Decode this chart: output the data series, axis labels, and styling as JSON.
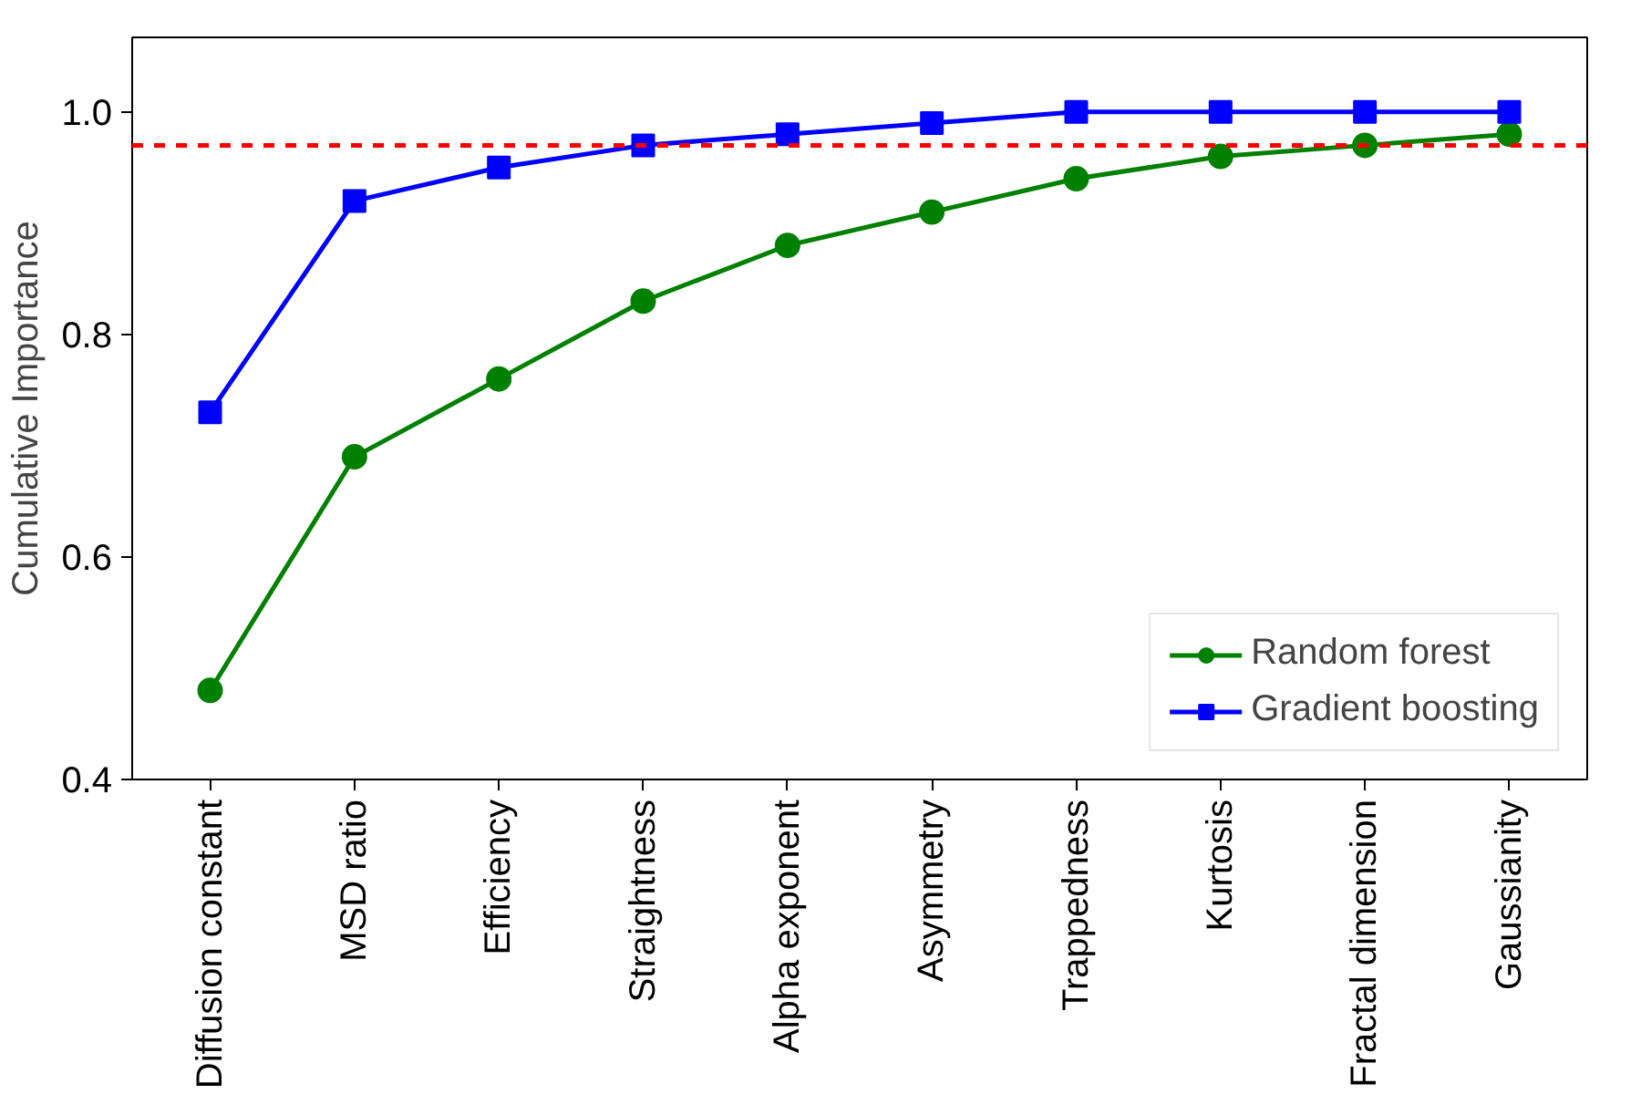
{
  "chart_data": {
    "type": "line",
    "ylabel": "Cumulative Importance",
    "categories": [
      "Diffusion constant",
      "MSD ratio",
      "Efficiency",
      "Straightness",
      "Alpha exponent",
      "Asymmetry",
      "Trappedness",
      "Kurtosis",
      "Fractal dimension",
      "Gaussianity"
    ],
    "series": [
      {
        "name": "Random forest",
        "color": "#008000",
        "marker": "circle",
        "values": [
          0.48,
          0.69,
          0.76,
          0.83,
          0.88,
          0.91,
          0.94,
          0.96,
          0.97,
          0.98
        ]
      },
      {
        "name": "Gradient boosting",
        "color": "#0000ff",
        "marker": "square",
        "values": [
          0.73,
          0.92,
          0.95,
          0.97,
          0.98,
          0.99,
          1.0,
          1.0,
          1.0,
          1.0
        ]
      }
    ],
    "ylim": [
      0.4,
      1.067
    ],
    "yticks": [
      {
        "value": 0.4,
        "label": "0.4"
      },
      {
        "value": 0.6,
        "label": "0.6"
      },
      {
        "value": 0.8,
        "label": "0.8"
      },
      {
        "value": 1.0,
        "label": "1.0"
      }
    ],
    "ref_lines": [
      {
        "axis": "y",
        "value": 0.97,
        "color": "#ff0000",
        "line_style": "dashed"
      }
    ],
    "legend": "bottom right",
    "grid": false,
    "line_style": "solid"
  }
}
